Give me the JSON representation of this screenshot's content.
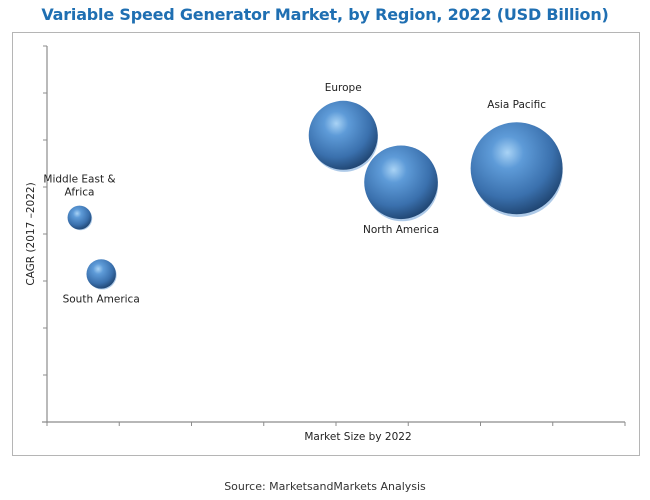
{
  "chart_data": {
    "type": "bubble",
    "title": "Variable Speed Generator Market, by Region, 2022 (USD Billion)",
    "xlabel": "Market Size by 2022",
    "ylabel": "CAGR (2017 –2022)",
    "x_ticks": 8,
    "y_ticks": 8,
    "xlim": [
      0,
      8
    ],
    "ylim": [
      0,
      8
    ],
    "tick_labels_shown": false,
    "grid": false,
    "bubble_color": "#3d7cc0",
    "series": [
      {
        "name": "Europe",
        "x": 4.1,
        "y": 6.1,
        "size": 0.75,
        "label_pos": "top"
      },
      {
        "name": "North America",
        "x": 4.9,
        "y": 5.1,
        "size": 0.8,
        "label_pos": "bottom"
      },
      {
        "name": "Asia Pacific",
        "x": 6.5,
        "y": 5.4,
        "size": 1.0,
        "label_pos": "top"
      },
      {
        "name": "Middle East & Africa",
        "x": 0.45,
        "y": 4.35,
        "size": 0.26,
        "label_pos": "top"
      },
      {
        "name": "South America",
        "x": 0.75,
        "y": 3.15,
        "size": 0.32,
        "label_pos": "bottom"
      }
    ]
  },
  "source": "Source: MarketsandMarkets Analysis"
}
